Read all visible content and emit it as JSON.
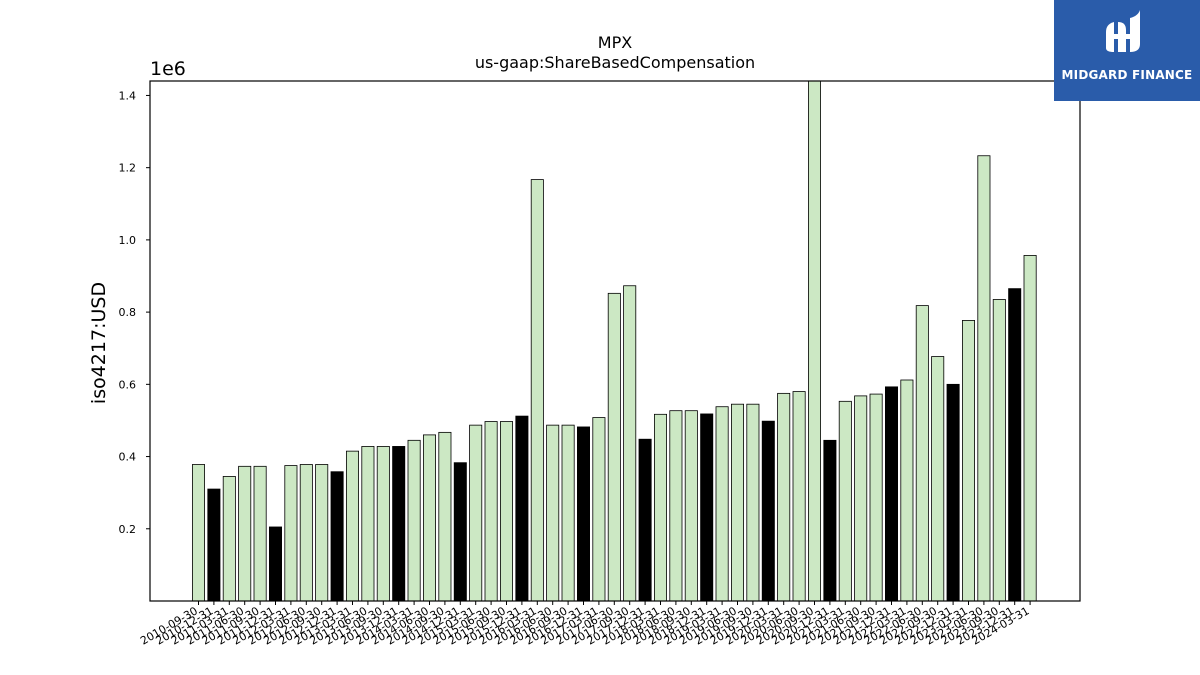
{
  "chart_data": {
    "type": "bar",
    "title": "MPX",
    "subtitle": "us-gaap:ShareBasedCompensation",
    "ylabel": "iso4217:USD",
    "y_offset_label": "1e6",
    "ylim": [
      0,
      1440000
    ],
    "yticks": [
      0.2,
      0.4,
      0.6,
      0.8,
      1.0,
      1.2,
      1.4
    ],
    "colors": {
      "quarter": "#cce8c4",
      "annual": "#000000",
      "edge": "#000000"
    },
    "categories": [
      "2010-09-30",
      "2010-12-31",
      "2011-03-31",
      "2011-06-30",
      "2011-09-30",
      "2011-12-31",
      "2012-03-31",
      "2012-06-30",
      "2012-09-30",
      "2012-12-31",
      "2013-03-31",
      "2013-06-30",
      "2013-09-30",
      "2013-12-31",
      "2014-03-31",
      "2014-06-30",
      "2014-09-30",
      "2014-12-31",
      "2015-03-31",
      "2015-06-30",
      "2015-09-30",
      "2015-12-31",
      "2016-03-31",
      "2016-06-30",
      "2016-09-30",
      "2016-12-31",
      "2017-03-31",
      "2017-06-30",
      "2017-09-30",
      "2017-12-31",
      "2018-03-31",
      "2018-06-30",
      "2018-09-30",
      "2018-12-31",
      "2019-03-31",
      "2019-06-30",
      "2019-09-30",
      "2019-12-31",
      "2020-03-31",
      "2020-06-30",
      "2020-09-30",
      "2020-12-31",
      "2021-03-31",
      "2021-06-30",
      "2021-09-30",
      "2021-12-31",
      "2022-03-31",
      "2022-06-30",
      "2022-09-30",
      "2022-12-31",
      "2023-03-31",
      "2023-06-30",
      "2023-09-30",
      "2023-12-31",
      "2024-03-31"
    ],
    "values": [
      378000,
      310000,
      345000,
      373000,
      373000,
      205000,
      375000,
      378000,
      378000,
      358000,
      415000,
      428000,
      428000,
      428000,
      445000,
      460000,
      467000,
      383000,
      487000,
      497000,
      497000,
      512000,
      1167000,
      487000,
      487000,
      482000,
      508000,
      852000,
      873000,
      448000,
      517000,
      527000,
      527000,
      518000,
      538000,
      545000,
      545000,
      498000,
      575000,
      580000,
      1440000,
      445000,
      553000,
      568000,
      573000,
      593000,
      612000,
      818000,
      677000,
      600000,
      777000,
      1233000,
      835000,
      865000,
      957000
    ],
    "annual": [
      false,
      true,
      false,
      false,
      false,
      true,
      false,
      false,
      false,
      true,
      false,
      false,
      false,
      true,
      false,
      false,
      false,
      true,
      false,
      false,
      false,
      true,
      false,
      false,
      false,
      true,
      false,
      false,
      false,
      true,
      false,
      false,
      false,
      true,
      false,
      false,
      false,
      true,
      false,
      false,
      false,
      true,
      false,
      false,
      false,
      true,
      false,
      false,
      false,
      true,
      false,
      false,
      false,
      true,
      false
    ]
  },
  "logo": {
    "text": "MIDGARD FINANCE",
    "background": "#2a5caa"
  }
}
